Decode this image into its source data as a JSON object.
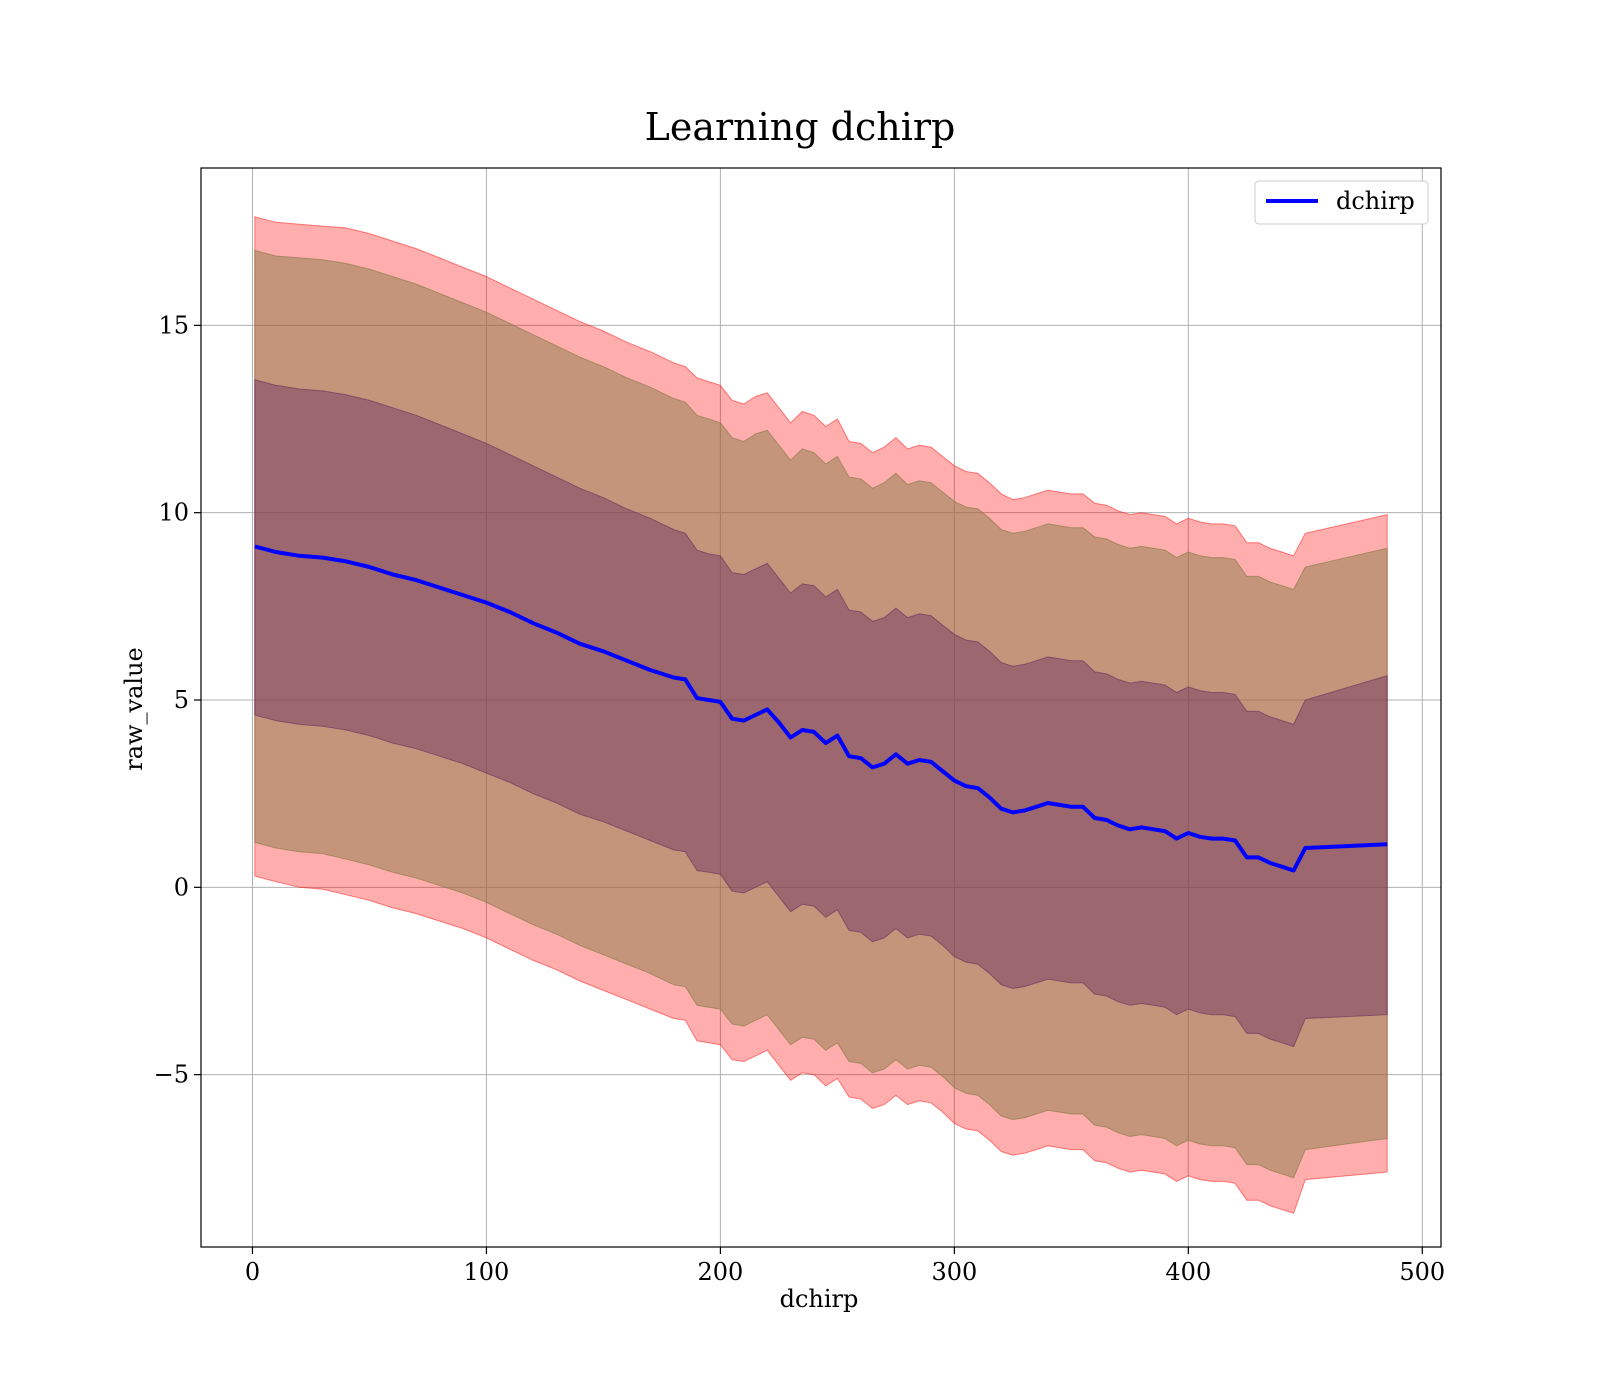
{
  "chart_data": {
    "type": "line",
    "title": "Learning dchirp",
    "xlabel": "dchirp",
    "ylabel": "raw_value",
    "xlim": [
      -22,
      508
    ],
    "ylim": [
      -9.6,
      19.2
    ],
    "x_ticks": [
      0,
      100,
      200,
      300,
      400,
      500
    ],
    "x_tick_labels": [
      "0",
      "100",
      "200",
      "300",
      "400",
      "500"
    ],
    "y_ticks": [
      -5,
      0,
      5,
      10,
      15
    ],
    "y_tick_labels": [
      "−5",
      "0",
      "5",
      "10",
      "15"
    ],
    "grid": true,
    "legend": "top-right",
    "series": [
      {
        "name": "dchirp",
        "color": "#0000ff",
        "x": [
          1,
          10,
          20,
          30,
          40,
          50,
          60,
          70,
          80,
          90,
          100,
          110,
          120,
          130,
          140,
          150,
          160,
          170,
          180,
          185,
          190,
          195,
          200,
          205,
          210,
          215,
          220,
          225,
          230,
          235,
          240,
          245,
          250,
          255,
          260,
          265,
          270,
          275,
          280,
          285,
          290,
          295,
          300,
          305,
          310,
          315,
          320,
          325,
          330,
          335,
          340,
          345,
          350,
          355,
          360,
          365,
          370,
          375,
          380,
          385,
          390,
          395,
          400,
          405,
          410,
          415,
          420,
          425,
          430,
          435,
          440,
          445,
          450,
          485
        ],
        "y": [
          9.1,
          8.95,
          8.85,
          8.8,
          8.7,
          8.55,
          8.35,
          8.2,
          8.0,
          7.8,
          7.6,
          7.35,
          7.05,
          6.8,
          6.5,
          6.3,
          6.05,
          5.8,
          5.6,
          5.55,
          5.05,
          5.0,
          4.95,
          4.5,
          4.45,
          4.6,
          4.75,
          4.4,
          4.0,
          4.2,
          4.15,
          3.85,
          4.05,
          3.5,
          3.45,
          3.2,
          3.3,
          3.55,
          3.3,
          3.4,
          3.35,
          3.1,
          2.85,
          2.7,
          2.65,
          2.4,
          2.1,
          2.0,
          2.05,
          2.15,
          2.25,
          2.2,
          2.15,
          2.15,
          1.85,
          1.8,
          1.65,
          1.55,
          1.6,
          1.55,
          1.5,
          1.3,
          1.45,
          1.35,
          1.3,
          1.3,
          1.25,
          0.8,
          0.8,
          0.65,
          0.55,
          0.45,
          1.05,
          1.15
        ]
      }
    ],
    "bands": [
      {
        "color": "#ff0000",
        "opacity": 0.32,
        "x": [
          1,
          10,
          20,
          30,
          40,
          50,
          60,
          70,
          80,
          90,
          100,
          110,
          120,
          130,
          140,
          150,
          160,
          170,
          180,
          185,
          190,
          195,
          200,
          205,
          210,
          215,
          220,
          225,
          230,
          235,
          240,
          245,
          250,
          255,
          260,
          265,
          270,
          275,
          280,
          285,
          290,
          295,
          300,
          305,
          310,
          315,
          320,
          325,
          330,
          335,
          340,
          345,
          350,
          355,
          360,
          365,
          370,
          375,
          380,
          385,
          390,
          395,
          400,
          405,
          410,
          415,
          420,
          425,
          430,
          435,
          440,
          445,
          450,
          485
        ],
        "upper": [
          17.9,
          17.75,
          17.7,
          17.65,
          17.6,
          17.45,
          17.25,
          17.05,
          16.8,
          16.55,
          16.3,
          16.0,
          15.7,
          15.4,
          15.1,
          14.85,
          14.55,
          14.3,
          14.0,
          13.9,
          13.6,
          13.5,
          13.4,
          13.0,
          12.9,
          13.1,
          13.2,
          12.8,
          12.4,
          12.7,
          12.6,
          12.3,
          12.5,
          11.9,
          11.85,
          11.6,
          11.75,
          12.0,
          11.7,
          11.8,
          11.75,
          11.5,
          11.25,
          11.1,
          11.05,
          10.8,
          10.5,
          10.35,
          10.4,
          10.5,
          10.6,
          10.55,
          10.5,
          10.5,
          10.25,
          10.2,
          10.05,
          9.95,
          10.0,
          9.95,
          9.9,
          9.7,
          9.85,
          9.75,
          9.7,
          9.7,
          9.65,
          9.2,
          9.2,
          9.05,
          8.95,
          8.85,
          9.45,
          9.95
        ],
        "lower": [
          0.3,
          0.15,
          0.0,
          -0.05,
          -0.2,
          -0.35,
          -0.55,
          -0.7,
          -0.9,
          -1.1,
          -1.35,
          -1.65,
          -1.95,
          -2.2,
          -2.5,
          -2.75,
          -3.0,
          -3.25,
          -3.5,
          -3.55,
          -4.1,
          -4.15,
          -4.2,
          -4.6,
          -4.65,
          -4.5,
          -4.35,
          -4.75,
          -5.15,
          -4.95,
          -5.0,
          -5.3,
          -5.1,
          -5.6,
          -5.65,
          -5.9,
          -5.8,
          -5.55,
          -5.8,
          -5.7,
          -5.75,
          -6.0,
          -6.3,
          -6.45,
          -6.5,
          -6.75,
          -7.05,
          -7.15,
          -7.1,
          -7.0,
          -6.9,
          -6.95,
          -7.0,
          -7.0,
          -7.3,
          -7.35,
          -7.5,
          -7.6,
          -7.55,
          -7.6,
          -7.65,
          -7.85,
          -7.7,
          -7.8,
          -7.85,
          -7.85,
          -7.9,
          -8.35,
          -8.35,
          -8.5,
          -8.6,
          -8.7,
          -7.8,
          -7.6
        ]
      },
      {
        "color": "#8b7d4a",
        "opacity": 0.5,
        "x": [
          1,
          10,
          20,
          30,
          40,
          50,
          60,
          70,
          80,
          90,
          100,
          110,
          120,
          130,
          140,
          150,
          160,
          170,
          180,
          185,
          190,
          195,
          200,
          205,
          210,
          215,
          220,
          225,
          230,
          235,
          240,
          245,
          250,
          255,
          260,
          265,
          270,
          275,
          280,
          285,
          290,
          295,
          300,
          305,
          310,
          315,
          320,
          325,
          330,
          335,
          340,
          345,
          350,
          355,
          360,
          365,
          370,
          375,
          380,
          385,
          390,
          395,
          400,
          405,
          410,
          415,
          420,
          425,
          430,
          435,
          440,
          445,
          450,
          485
        ],
        "upper": [
          17.0,
          16.85,
          16.8,
          16.75,
          16.65,
          16.5,
          16.3,
          16.1,
          15.85,
          15.6,
          15.35,
          15.05,
          14.75,
          14.45,
          14.15,
          13.9,
          13.6,
          13.35,
          13.05,
          12.95,
          12.6,
          12.5,
          12.4,
          12.0,
          11.9,
          12.1,
          12.2,
          11.8,
          11.4,
          11.7,
          11.6,
          11.3,
          11.5,
          10.95,
          10.9,
          10.65,
          10.8,
          11.05,
          10.75,
          10.85,
          10.8,
          10.55,
          10.3,
          10.15,
          10.1,
          9.85,
          9.55,
          9.45,
          9.5,
          9.6,
          9.7,
          9.65,
          9.6,
          9.6,
          9.35,
          9.3,
          9.15,
          9.05,
          9.1,
          9.05,
          9.0,
          8.8,
          8.95,
          8.85,
          8.8,
          8.8,
          8.75,
          8.3,
          8.3,
          8.15,
          8.05,
          7.95,
          8.55,
          9.05
        ],
        "lower": [
          1.2,
          1.05,
          0.95,
          0.9,
          0.75,
          0.6,
          0.4,
          0.25,
          0.05,
          -0.15,
          -0.4,
          -0.7,
          -1.0,
          -1.25,
          -1.55,
          -1.8,
          -2.05,
          -2.3,
          -2.6,
          -2.65,
          -3.15,
          -3.2,
          -3.25,
          -3.65,
          -3.7,
          -3.55,
          -3.4,
          -3.8,
          -4.2,
          -4.0,
          -4.05,
          -4.35,
          -4.15,
          -4.65,
          -4.7,
          -4.95,
          -4.85,
          -4.6,
          -4.85,
          -4.75,
          -4.8,
          -5.05,
          -5.35,
          -5.5,
          -5.55,
          -5.8,
          -6.1,
          -6.2,
          -6.15,
          -6.05,
          -5.95,
          -6.0,
          -6.05,
          -6.05,
          -6.35,
          -6.4,
          -6.55,
          -6.65,
          -6.6,
          -6.65,
          -6.7,
          -6.9,
          -6.75,
          -6.85,
          -6.9,
          -6.9,
          -6.95,
          -7.4,
          -7.4,
          -7.55,
          -7.65,
          -7.75,
          -7.0,
          -6.7
        ]
      },
      {
        "color": "#6b2f5f",
        "opacity": 0.45,
        "x": [
          1,
          10,
          20,
          30,
          40,
          50,
          60,
          70,
          80,
          90,
          100,
          110,
          120,
          130,
          140,
          150,
          160,
          170,
          180,
          185,
          190,
          195,
          200,
          205,
          210,
          215,
          220,
          225,
          230,
          235,
          240,
          245,
          250,
          255,
          260,
          265,
          270,
          275,
          280,
          285,
          290,
          295,
          300,
          305,
          310,
          315,
          320,
          325,
          330,
          335,
          340,
          345,
          350,
          355,
          360,
          365,
          370,
          375,
          380,
          385,
          390,
          395,
          400,
          405,
          410,
          415,
          420,
          425,
          430,
          435,
          440,
          445,
          450,
          485
        ],
        "upper": [
          13.55,
          13.4,
          13.3,
          13.25,
          13.15,
          13.0,
          12.8,
          12.6,
          12.35,
          12.1,
          11.85,
          11.55,
          11.25,
          10.95,
          10.65,
          10.4,
          10.1,
          9.85,
          9.55,
          9.45,
          9.0,
          8.9,
          8.85,
          8.4,
          8.35,
          8.5,
          8.65,
          8.25,
          7.85,
          8.1,
          8.05,
          7.75,
          7.95,
          7.4,
          7.35,
          7.1,
          7.2,
          7.45,
          7.2,
          7.3,
          7.25,
          7.0,
          6.75,
          6.6,
          6.55,
          6.3,
          6.0,
          5.9,
          5.95,
          6.05,
          6.15,
          6.1,
          6.05,
          6.05,
          5.75,
          5.7,
          5.55,
          5.45,
          5.5,
          5.45,
          5.4,
          5.2,
          5.35,
          5.25,
          5.2,
          5.2,
          5.15,
          4.7,
          4.7,
          4.55,
          4.45,
          4.35,
          5.0,
          5.65
        ],
        "lower": [
          4.6,
          4.45,
          4.35,
          4.3,
          4.2,
          4.05,
          3.85,
          3.7,
          3.5,
          3.3,
          3.05,
          2.8,
          2.5,
          2.25,
          1.95,
          1.75,
          1.5,
          1.25,
          1.0,
          0.95,
          0.45,
          0.4,
          0.35,
          -0.1,
          -0.15,
          0.0,
          0.15,
          -0.25,
          -0.65,
          -0.45,
          -0.5,
          -0.8,
          -0.6,
          -1.15,
          -1.2,
          -1.45,
          -1.35,
          -1.1,
          -1.35,
          -1.25,
          -1.3,
          -1.55,
          -1.85,
          -2.0,
          -2.05,
          -2.3,
          -2.6,
          -2.7,
          -2.65,
          -2.55,
          -2.45,
          -2.5,
          -2.55,
          -2.55,
          -2.85,
          -2.9,
          -3.05,
          -3.15,
          -3.1,
          -3.15,
          -3.2,
          -3.4,
          -3.25,
          -3.35,
          -3.4,
          -3.4,
          -3.45,
          -3.9,
          -3.9,
          -4.05,
          -4.15,
          -4.25,
          -3.5,
          -3.4
        ]
      }
    ]
  }
}
